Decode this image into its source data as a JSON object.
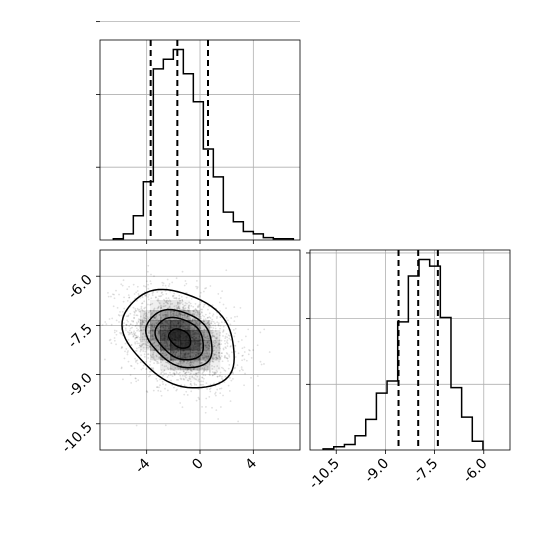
{
  "chart_data": {
    "type": "corner",
    "panels": [
      {
        "id": "hist_p1",
        "type": "histogram",
        "xlim": [
          -7.5,
          7.5
        ],
        "bins": [
          -6.5,
          -5.75,
          -5.0,
          -4.25,
          -3.5,
          -2.75,
          -2.0,
          -1.25,
          -0.5,
          0.25,
          1.0,
          1.75,
          2.5,
          3.25,
          4.0,
          4.75,
          5.5,
          6.25,
          7.0
        ],
        "counts": [
          1,
          5,
          20,
          48,
          141,
          149,
          157,
          137,
          114,
          75,
          52,
          23,
          15,
          7,
          5,
          2,
          1,
          1
        ],
        "quantiles": [
          -3.7,
          -1.7,
          0.6
        ],
        "x_ticks": [
          -4,
          0,
          4
        ],
        "x_tick_labels": [
          "-4",
          "0",
          "4"
        ],
        "y_ticks": [
          60,
          120,
          180
        ],
        "grid": true
      },
      {
        "id": "hist_p2",
        "type": "histogram",
        "xlim": [
          -11.3,
          -5.2
        ],
        "bins": [
          -10.9,
          -10.575,
          -10.25,
          -9.925,
          -9.6,
          -9.275,
          -8.95,
          -8.625,
          -8.3,
          -7.975,
          -7.65,
          -7.325,
          -7.0,
          -6.675,
          -6.35,
          -6.025
        ],
        "counts": [
          1,
          3,
          5,
          13,
          28,
          52,
          63,
          117,
          159,
          174,
          168,
          121,
          57,
          30,
          8
        ],
        "quantiles": [
          -8.6,
          -8.0,
          -7.4
        ],
        "x_ticks": [
          -10.5,
          -9.0,
          -7.5,
          -6.0
        ],
        "x_tick_labels": [
          "-10.5",
          "-9.0",
          "-7.5",
          "-6.0"
        ],
        "y_ticks": [
          60,
          120,
          180
        ],
        "grid": true
      },
      {
        "id": "density_p1_p2",
        "type": "density_2d",
        "xlim": [
          -7.5,
          7.5
        ],
        "ylim": [
          -11.3,
          -5.2
        ],
        "center": [
          -1.5,
          -7.9
        ],
        "sigma": [
          2.1,
          0.75
        ],
        "correlation": -0.3,
        "contour_levels": [
          0.39,
          0.86,
          1.18,
          2.0
        ],
        "x_ticks": [
          -4,
          0,
          4
        ],
        "x_tick_labels": [
          "-4",
          "0",
          "4"
        ],
        "y_ticks": [
          -6.0,
          -7.5,
          -9.0,
          -10.5
        ],
        "y_tick_labels": [
          "-6.0",
          "-7.5",
          "-9.0",
          "-10.5"
        ],
        "grid": true
      }
    ]
  }
}
